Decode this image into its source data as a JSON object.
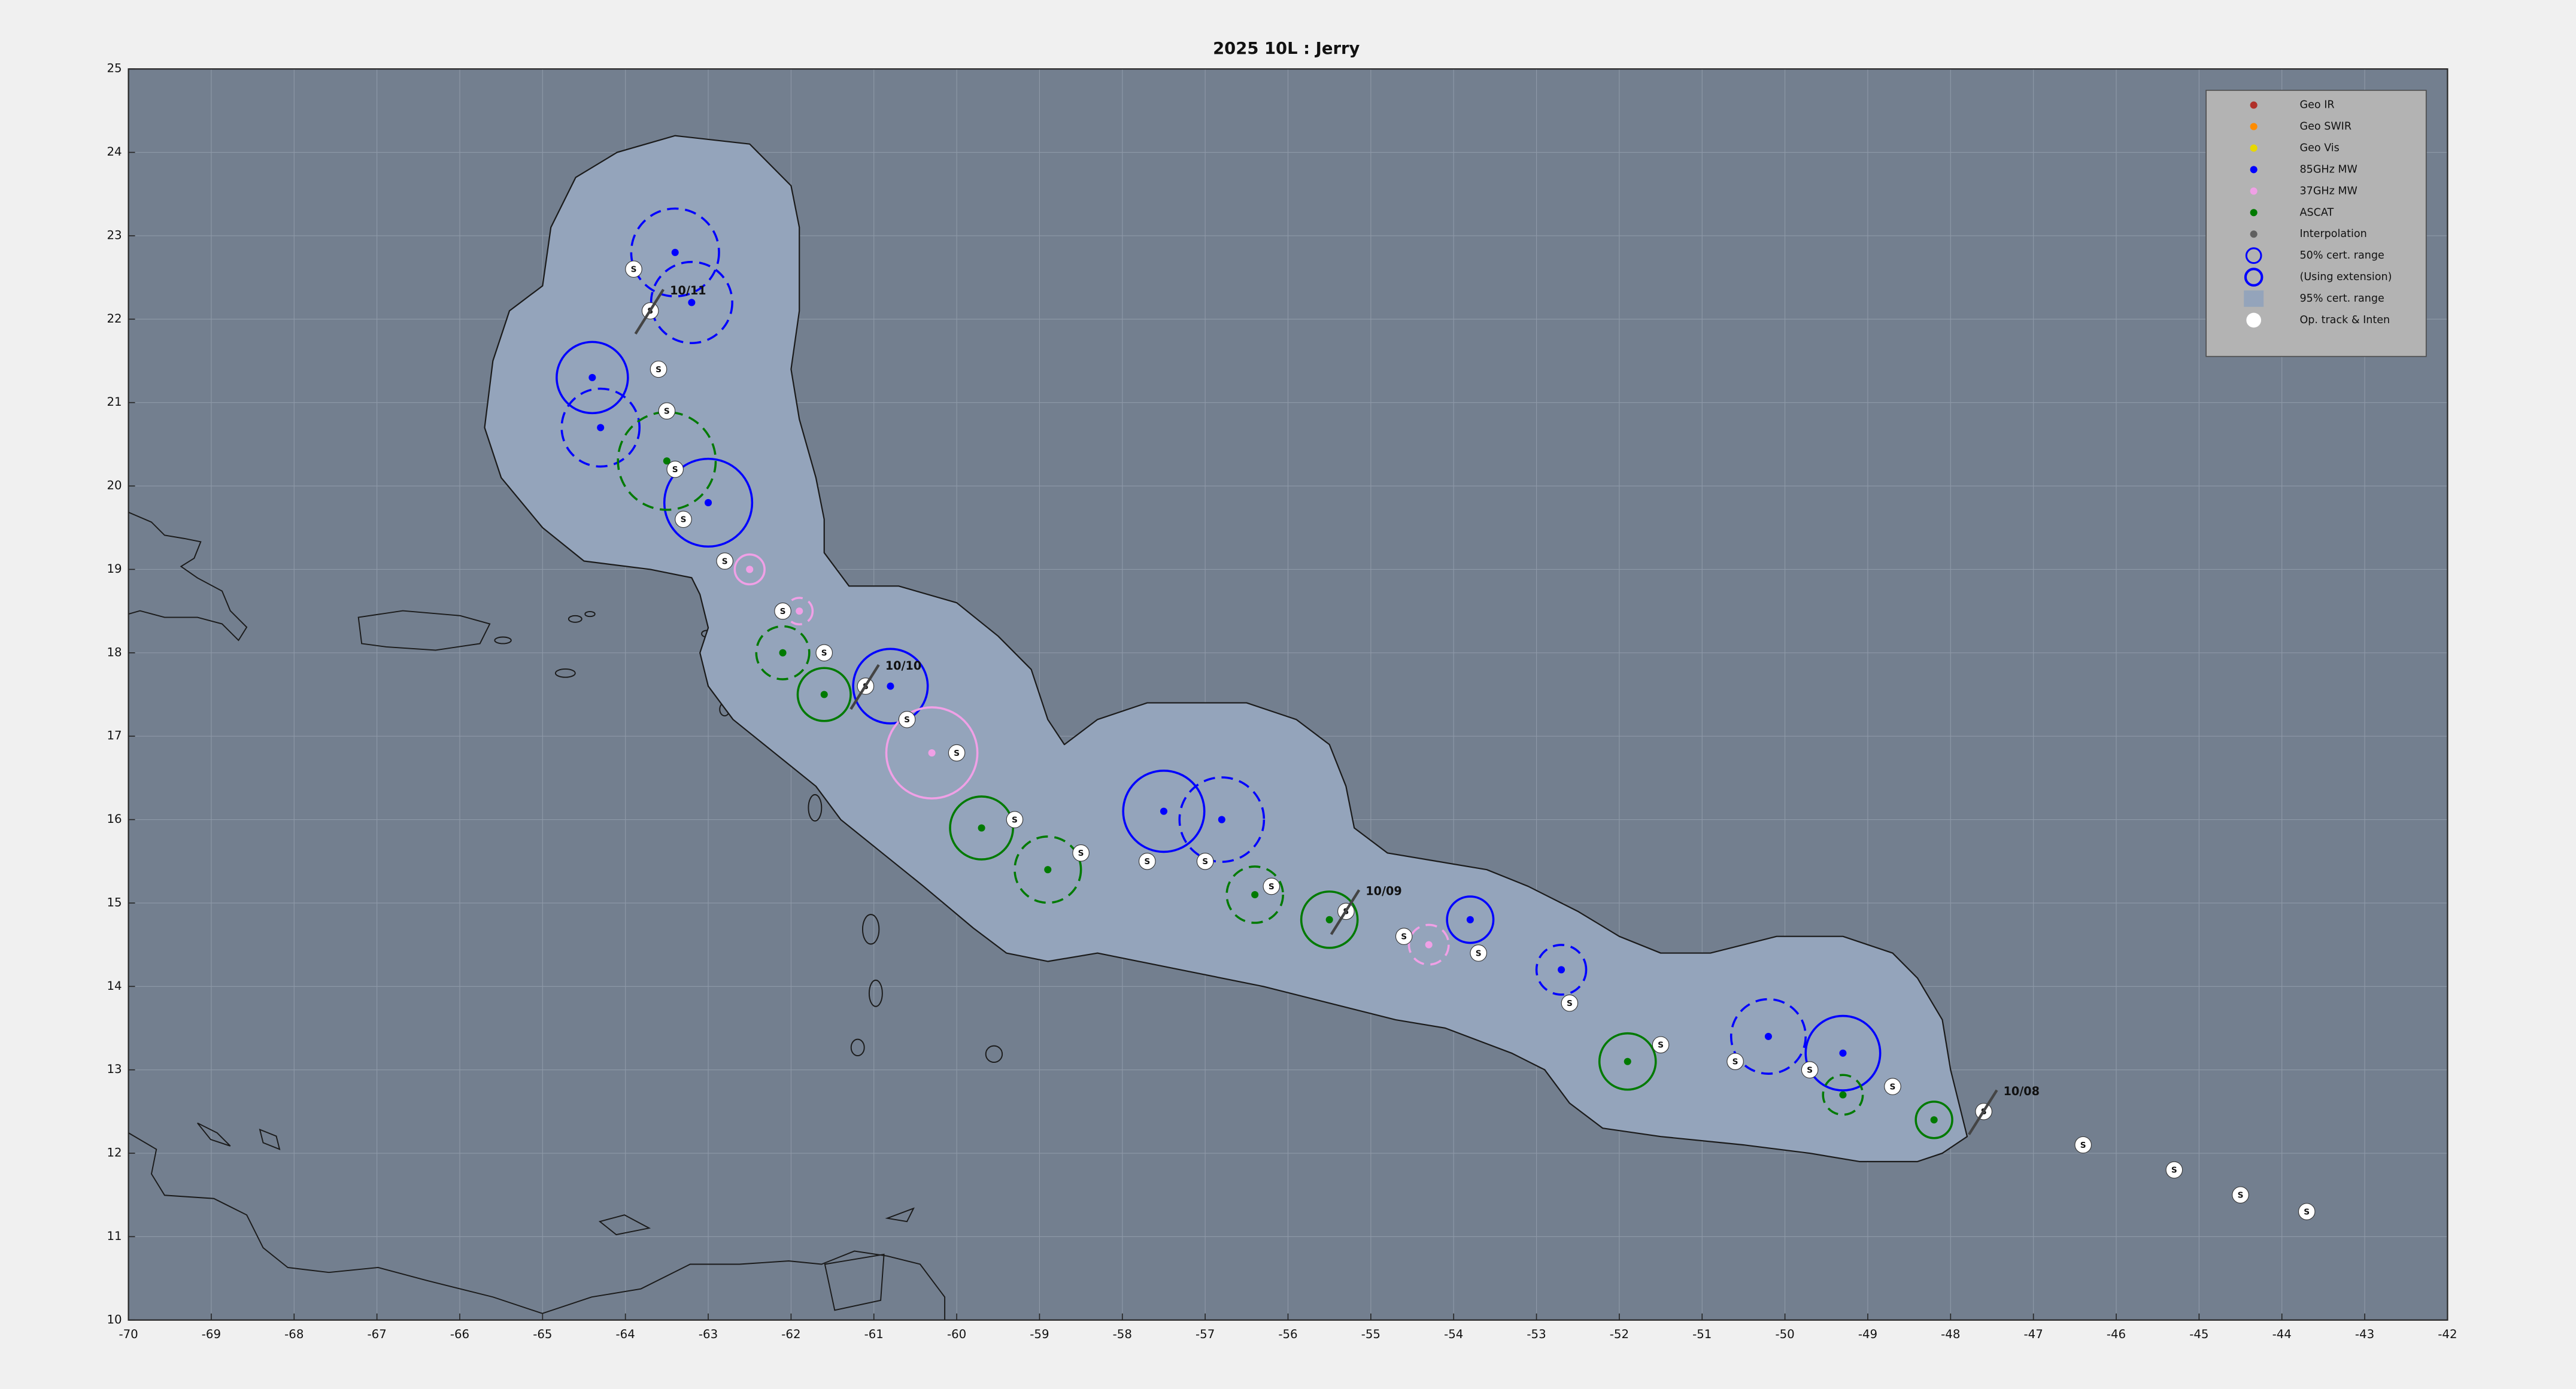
{
  "chart_data": {
    "type": "scatter",
    "title": "2025  10L :  Jerry",
    "xlim": [
      -70,
      -42
    ],
    "ylim": [
      10,
      25
    ],
    "xticks": [
      -70,
      -69,
      -68,
      -67,
      -66,
      -65,
      -64,
      -63,
      -62,
      -61,
      -60,
      -59,
      -58,
      -57,
      -56,
      -55,
      -54,
      -53,
      -52,
      -51,
      -50,
      -49,
      -48,
      -47,
      -46,
      -45,
      -44,
      -43,
      -42
    ],
    "yticks": [
      10,
      11,
      12,
      13,
      14,
      15,
      16,
      17,
      18,
      19,
      20,
      21,
      22,
      23,
      24,
      25
    ],
    "grid": true,
    "legend": "upper right",
    "series": [
      {
        "name": "Geo IR",
        "color": "#b0302a",
        "marker": "dot",
        "x": [],
        "values": []
      },
      {
        "name": "Geo SWIR",
        "color": "#ff8c00",
        "marker": "dot",
        "x": [],
        "values": []
      },
      {
        "name": "Geo Vis",
        "color": "#e8d800",
        "marker": "dot",
        "x": [],
        "values": []
      },
      {
        "name": "85GHz MW",
        "color": "#0000ff",
        "marker": "dot",
        "x": [
          -63.4,
          -63.2,
          -64.4,
          -64.3,
          -63.0,
          -60.8,
          -57.5,
          -56.8,
          -53.8,
          -52.7,
          -50.2,
          -49.3
        ],
        "values": [
          22.8,
          22.2,
          21.3,
          20.7,
          19.8,
          17.6,
          16.1,
          16.0,
          14.8,
          14.2,
          13.4,
          13.2
        ],
        "radius": [
          0.53,
          0.49,
          0.43,
          0.47,
          0.53,
          0.45,
          0.49,
          0.51,
          0.28,
          0.3,
          0.45,
          0.45
        ],
        "dashed": [
          true,
          true,
          false,
          true,
          false,
          false,
          false,
          true,
          false,
          true,
          true,
          false
        ]
      },
      {
        "name": "37GHz MW",
        "color": "#f0a0e6",
        "marker": "dot",
        "x": [
          -62.5,
          -61.9,
          -60.3,
          -54.3
        ],
        "values": [
          19.0,
          18.5,
          16.8,
          14.5
        ],
        "radius": [
          0.18,
          0.16,
          0.55,
          0.24
        ],
        "dashed": [
          false,
          true,
          false,
          true
        ]
      },
      {
        "name": "ASCAT",
        "color": "#007a00",
        "marker": "dot",
        "x": [
          -63.5,
          -62.1,
          -61.6,
          -59.7,
          -58.9,
          -56.4,
          -55.5,
          -51.9,
          -49.3,
          -48.2
        ],
        "values": [
          20.3,
          18.0,
          17.5,
          15.9,
          15.4,
          15.1,
          14.8,
          13.1,
          12.7,
          12.4
        ],
        "radius": [
          0.59,
          0.32,
          0.32,
          0.38,
          0.4,
          0.34,
          0.34,
          0.34,
          0.24,
          0.22
        ],
        "dashed": [
          true,
          true,
          false,
          false,
          true,
          true,
          false,
          false,
          true,
          false
        ]
      },
      {
        "name": "Interpolation",
        "color": "#606060",
        "marker": "dot",
        "x": [],
        "values": []
      },
      {
        "name": "50% cert. range",
        "color": "#0000ff",
        "marker": "ring",
        "x": [],
        "values": []
      },
      {
        "name": "(Using extension)",
        "color": "#0000ff",
        "marker": "ring-thick",
        "x": [],
        "values": []
      },
      {
        "name": "95% cert. range",
        "color": "#94a4bb",
        "marker": "patch",
        "x": [
          -63.4,
          -62.5,
          -62.0,
          -61.9,
          -61.9,
          -62.0,
          -61.9,
          -61.7,
          -61.6,
          -61.6,
          -61.3,
          -60.7,
          -60.0,
          -59.5,
          -59.1,
          -58.9,
          -58.7,
          -58.3,
          -57.7,
          -56.5,
          -55.9,
          -55.5,
          -55.3,
          -55.2,
          -54.8,
          -54.2,
          -53.6,
          -53.1,
          -52.5,
          -52.0,
          -51.5,
          -50.9,
          -50.1,
          -49.3,
          -48.7,
          -48.4,
          -48.1,
          -48.0,
          -47.8,
          -48.1,
          -48.4,
          -49.1,
          -49.7,
          -50.5,
          -51.5,
          -52.2,
          -52.6,
          -52.9,
          -53.3,
          -54.1,
          -54.7,
          -55.5,
          -56.3,
          -57.3,
          -58.3,
          -58.9,
          -59.4,
          -59.8,
          -60.4,
          -60.9,
          -61.4,
          -61.7,
          -62.2,
          -62.7,
          -63.0,
          -63.1,
          -63.0,
          -63.1,
          -63.2,
          -63.7,
          -64.5,
          -65.0,
          -65.5,
          -65.7,
          -65.6,
          -65.4,
          -65.0,
          -64.9,
          -64.6,
          -64.1
        ],
        "values": [
          24.2,
          24.1,
          23.6,
          23.1,
          22.1,
          21.4,
          20.8,
          20.1,
          19.6,
          19.2,
          18.8,
          18.8,
          18.6,
          18.2,
          17.8,
          17.2,
          16.9,
          17.2,
          17.4,
          17.4,
          17.2,
          16.9,
          16.4,
          15.9,
          15.6,
          15.5,
          15.4,
          15.2,
          14.9,
          14.6,
          14.4,
          14.4,
          14.6,
          14.6,
          14.4,
          14.1,
          13.6,
          13.0,
          12.2,
          12.0,
          11.9,
          11.9,
          12.0,
          12.1,
          12.2,
          12.3,
          12.6,
          13.0,
          13.2,
          13.5,
          13.6,
          13.8,
          14.0,
          14.2,
          14.4,
          14.3,
          14.4,
          14.7,
          15.2,
          15.6,
          16.0,
          16.4,
          16.8,
          17.2,
          17.6,
          18.0,
          18.3,
          18.7,
          18.9,
          19.0,
          19.1,
          19.5,
          20.1,
          20.7,
          21.5,
          22.1,
          22.4,
          23.1,
          23.7,
          24.0
        ]
      },
      {
        "name": "Op. track & Inten",
        "color": "#ffffff",
        "marker": "disc",
        "x": [
          -63.9,
          -63.7,
          -63.6,
          -63.5,
          -63.4,
          -63.3,
          -62.8,
          -62.1,
          -61.6,
          -61.1,
          -60.6,
          -60.0,
          -59.3,
          -58.5,
          -57.7,
          -57.0,
          -56.2,
          -55.3,
          -54.6,
          -53.7,
          -52.6,
          -51.5,
          -50.6,
          -49.7,
          -48.7,
          -47.6,
          -46.4,
          -45.3,
          -44.5,
          -43.7
        ],
        "values": [
          22.6,
          22.1,
          21.4,
          20.9,
          20.2,
          19.6,
          19.1,
          18.5,
          18.0,
          17.6,
          17.2,
          16.8,
          16.0,
          15.6,
          15.5,
          15.5,
          15.2,
          14.9,
          14.6,
          14.4,
          13.8,
          13.3,
          13.1,
          13.0,
          12.8,
          12.5,
          12.1,
          11.8,
          11.5,
          11.3
        ],
        "value_labels": [
          "S",
          "S",
          "S",
          "S",
          "S",
          "S",
          "S",
          "S",
          "S",
          "S",
          "S",
          "S",
          "S",
          "S",
          "S",
          "S",
          "S",
          "S",
          "S",
          "S",
          "S",
          "S",
          "S",
          "S",
          "S",
          "S",
          "S",
          "S",
          "S",
          "S"
        ]
      }
    ],
    "annotations": [
      {
        "text": "10/11",
        "x": -63.7,
        "y": 22.1
      },
      {
        "text": "10/10",
        "x": -61.1,
        "y": 17.6
      },
      {
        "text": "10/09",
        "x": -55.3,
        "y": 14.9
      },
      {
        "text": "10/08",
        "x": -47.6,
        "y": 12.5
      }
    ]
  }
}
